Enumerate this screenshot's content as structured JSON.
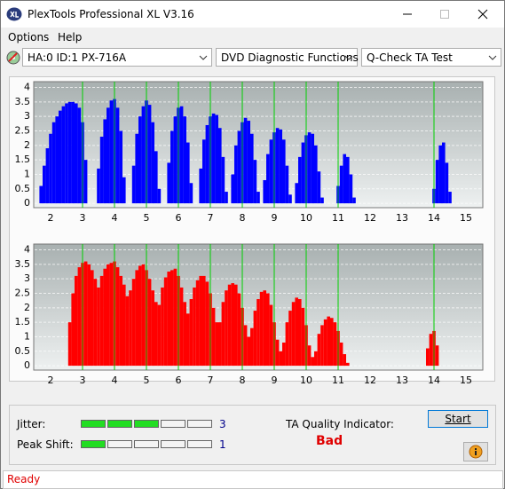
{
  "window": {
    "title": "PlexTools Professional XL V3.16"
  },
  "menu": [
    "Options",
    "Help"
  ],
  "toolbar": {
    "drive": "HA:0 ID:1  PX-716A",
    "function": "DVD Diagnostic Functions",
    "test": "Q-Check TA Test"
  },
  "chart_data": [
    {
      "type": "bar",
      "color": "#0000ff",
      "x": [
        1.7,
        1.8,
        1.9,
        2.0,
        2.1,
        2.2,
        2.3,
        2.4,
        2.5,
        2.6,
        2.7,
        2.8,
        2.9,
        3.0,
        3.1,
        3.5,
        3.6,
        3.7,
        3.8,
        3.9,
        4.0,
        4.1,
        4.2,
        4.3,
        4.6,
        4.7,
        4.8,
        4.9,
        5.0,
        5.1,
        5.2,
        5.3,
        5.4,
        5.7,
        5.8,
        5.9,
        6.0,
        6.1,
        6.2,
        6.3,
        6.4,
        6.7,
        6.8,
        6.9,
        7.0,
        7.1,
        7.2,
        7.3,
        7.4,
        7.5,
        7.7,
        7.8,
        7.9,
        8.0,
        8.1,
        8.2,
        8.3,
        8.4,
        8.5,
        8.7,
        8.8,
        8.9,
        9.0,
        9.1,
        9.2,
        9.3,
        9.4,
        9.5,
        9.7,
        9.8,
        9.9,
        10.0,
        10.1,
        10.2,
        10.3,
        10.4,
        10.5,
        11.0,
        11.1,
        11.2,
        11.3,
        11.4,
        11.5,
        14.0,
        14.1,
        14.2,
        14.3,
        14.4,
        14.5
      ],
      "values": [
        0.6,
        1.3,
        1.9,
        2.4,
        2.8,
        3.0,
        3.2,
        3.35,
        3.45,
        3.5,
        3.5,
        3.45,
        3.3,
        2.8,
        1.5,
        1.2,
        2.3,
        2.9,
        3.3,
        3.55,
        3.6,
        3.3,
        2.5,
        0.9,
        1.3,
        2.4,
        3.0,
        3.35,
        3.55,
        3.4,
        2.8,
        1.8,
        0.5,
        1.4,
        2.5,
        3.0,
        3.3,
        3.35,
        3.0,
        2.1,
        0.7,
        1.2,
        2.2,
        2.7,
        3.0,
        3.1,
        3.05,
        2.6,
        1.6,
        0.4,
        1.0,
        2.0,
        2.5,
        2.8,
        2.95,
        2.85,
        2.4,
        1.5,
        0.4,
        0.8,
        1.7,
        2.2,
        2.45,
        2.6,
        2.55,
        2.2,
        1.3,
        0.3,
        0.7,
        1.6,
        2.1,
        2.35,
        2.45,
        2.4,
        2.0,
        1.1,
        0.2,
        0.6,
        1.3,
        1.7,
        1.6,
        1.0,
        0.2,
        0.5,
        1.5,
        2.0,
        2.1,
        1.4,
        0.4
      ],
      "xlim": [
        1.5,
        15.5
      ],
      "ylim": [
        -0.15,
        4.2
      ],
      "xticks": [
        2,
        3,
        4,
        5,
        6,
        7,
        8,
        9,
        10,
        11,
        12,
        13,
        14,
        15
      ],
      "yticks": [
        0,
        0.5,
        1,
        1.5,
        2,
        2.5,
        3,
        3.5,
        4
      ],
      "grid": true,
      "markers": [
        3,
        4,
        5,
        6,
        7,
        8,
        9,
        10,
        11,
        14
      ],
      "marker_color": "#00d000"
    },
    {
      "type": "bar",
      "color": "#ff0000",
      "x": [
        2.6,
        2.7,
        2.8,
        2.9,
        3.0,
        3.1,
        3.2,
        3.3,
        3.4,
        3.5,
        3.6,
        3.7,
        3.8,
        3.9,
        4.0,
        4.1,
        4.2,
        4.3,
        4.4,
        4.5,
        4.6,
        4.7,
        4.8,
        4.9,
        5.0,
        5.1,
        5.2,
        5.3,
        5.4,
        5.5,
        5.6,
        5.7,
        5.8,
        5.9,
        6.0,
        6.1,
        6.2,
        6.3,
        6.4,
        6.5,
        6.6,
        6.7,
        6.8,
        6.9,
        7.0,
        7.1,
        7.2,
        7.3,
        7.4,
        7.5,
        7.6,
        7.7,
        7.8,
        7.9,
        8.0,
        8.1,
        8.2,
        8.3,
        8.4,
        8.5,
        8.6,
        8.7,
        8.8,
        8.9,
        9.0,
        9.1,
        9.2,
        9.3,
        9.4,
        9.5,
        9.6,
        9.7,
        9.8,
        9.9,
        10.0,
        10.1,
        10.2,
        10.3,
        10.4,
        10.5,
        10.6,
        10.7,
        10.8,
        10.9,
        11.0,
        11.1,
        11.2,
        11.3,
        13.8,
        13.9,
        14.0,
        14.1
      ],
      "values": [
        1.5,
        2.5,
        3.1,
        3.4,
        3.55,
        3.6,
        3.5,
        3.3,
        3.0,
        2.7,
        3.1,
        3.35,
        3.5,
        3.55,
        3.6,
        3.4,
        3.1,
        2.8,
        2.4,
        2.6,
        3.0,
        3.3,
        3.45,
        3.5,
        3.3,
        3.0,
        2.6,
        2.2,
        2.1,
        2.7,
        3.05,
        3.25,
        3.3,
        3.35,
        3.1,
        2.7,
        2.2,
        1.8,
        2.3,
        2.7,
        2.95,
        3.1,
        3.1,
        2.9,
        2.5,
        2.0,
        1.5,
        1.5,
        2.2,
        2.6,
        2.8,
        2.85,
        2.8,
        2.5,
        2.0,
        1.4,
        1.0,
        1.3,
        1.9,
        2.3,
        2.55,
        2.6,
        2.5,
        2.1,
        1.5,
        0.9,
        0.5,
        0.8,
        1.5,
        1.9,
        2.2,
        2.35,
        2.3,
        2.0,
        1.4,
        0.7,
        0.3,
        0.5,
        1.1,
        1.4,
        1.6,
        1.7,
        1.65,
        1.5,
        1.2,
        0.8,
        0.4,
        0.1,
        0.6,
        1.1,
        1.2,
        0.7
      ],
      "xlim": [
        1.5,
        15.5
      ],
      "ylim": [
        -0.15,
        4.2
      ],
      "xticks": [
        2,
        3,
        4,
        5,
        6,
        7,
        8,
        9,
        10,
        11,
        12,
        13,
        14,
        15
      ],
      "yticks": [
        0,
        0.5,
        1,
        1.5,
        2,
        2.5,
        3,
        3.5,
        4
      ],
      "grid": true,
      "markers": [
        3,
        4,
        5,
        6,
        7,
        8,
        9,
        10,
        11,
        14
      ],
      "marker_color": "#00d000"
    }
  ],
  "quality": {
    "jitter_label": "Jitter:",
    "jitter": 3,
    "peak_shift_label": "Peak Shift:",
    "peak_shift": 1,
    "segments": 5,
    "indicator_label": "TA Quality Indicator:",
    "indicator": "Bad"
  },
  "buttons": {
    "start": "Start"
  },
  "status": "Ready"
}
